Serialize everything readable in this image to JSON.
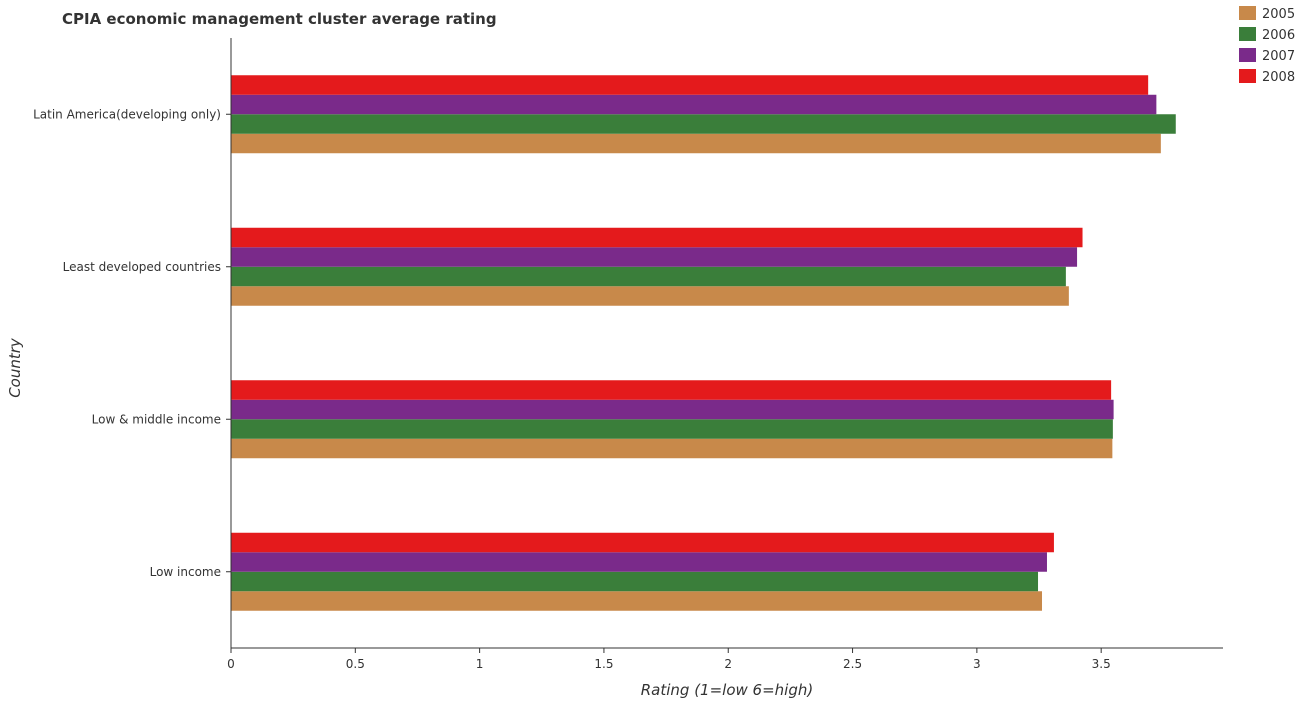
{
  "chart_data": {
    "type": "bar",
    "orientation": "horizontal",
    "title": "CPIA economic management cluster average rating",
    "xlabel": "Rating (1=low 6=high)",
    "ylabel": "Country",
    "xlim": [
      0,
      3.99
    ],
    "xticks": [
      0,
      0.5,
      1,
      1.5,
      2,
      2.5,
      3,
      3.5
    ],
    "xtick_labels": [
      "0",
      "0.5",
      "1",
      "1.5",
      "2",
      "2.5",
      "3",
      "3.5"
    ],
    "grid": false,
    "legend_position": "top-right",
    "categories": [
      "Latin America(developing only)",
      "Least developed countries",
      "Low & middle income",
      "Low income"
    ],
    "series": [
      {
        "name": "2005",
        "color": "#c8894a",
        "values": [
          3.74,
          3.37,
          3.545,
          3.262
        ]
      },
      {
        "name": "2006",
        "color": "#3a7e3a",
        "values": [
          3.8,
          3.358,
          3.547,
          3.246
        ]
      },
      {
        "name": "2007",
        "color": "#7a2a8a",
        "values": [
          3.722,
          3.403,
          3.55,
          3.282
        ]
      },
      {
        "name": "2008",
        "color": "#e41a1c",
        "values": [
          3.689,
          3.425,
          3.54,
          3.31
        ]
      }
    ]
  }
}
